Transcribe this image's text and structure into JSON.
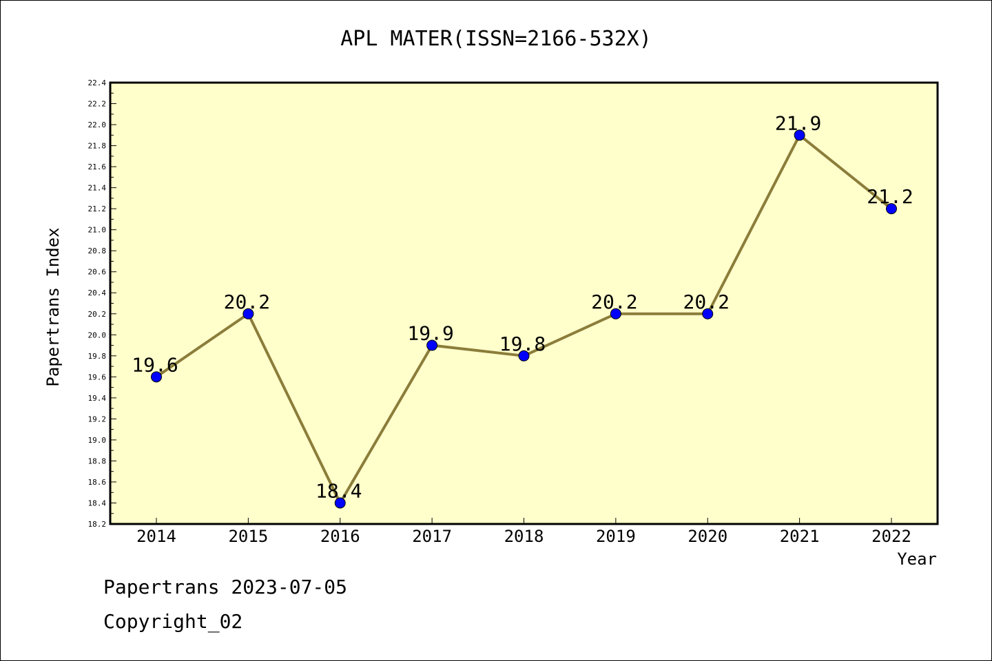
{
  "chart_data": {
    "type": "line",
    "title": "APL MATER(ISSN=2166-532X)",
    "xlabel": "Year",
    "ylabel": "Papertrans Index",
    "categories": [
      "2014",
      "2015",
      "2016",
      "2017",
      "2018",
      "2019",
      "2020",
      "2021",
      "2022"
    ],
    "values": [
      19.6,
      20.2,
      18.4,
      19.9,
      19.8,
      20.2,
      20.2,
      21.9,
      21.2
    ],
    "data_labels": [
      "19.6",
      "20.2",
      "18.4",
      "19.9",
      "19.8",
      "20.2",
      "20.2",
      "21.9",
      "21.2"
    ],
    "ylim": [
      18.2,
      22.4
    ],
    "yticks": [
      "18.2",
      "18.4",
      "18.6",
      "18.8",
      "19.0",
      "19.2",
      "19.4",
      "19.6",
      "19.8",
      "20.0",
      "20.2",
      "20.4",
      "20.6",
      "20.8",
      "21.0",
      "21.2",
      "21.4",
      "21.6",
      "21.8",
      "22.0",
      "22.2",
      "22.4"
    ],
    "grid": false,
    "colors": {
      "plot_background": "#ffffcc",
      "line": "#8b7d3a",
      "marker": "#0000ff"
    }
  },
  "footer": {
    "date_text": "Papertrans 2023-07-05",
    "copyright_text": "Copyright_02"
  }
}
